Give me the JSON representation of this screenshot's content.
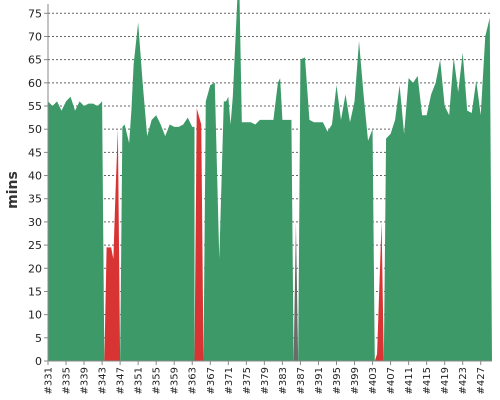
{
  "chart_data": {
    "type": "area",
    "title": "",
    "xlabel": "",
    "ylabel": "mins",
    "ylim": [
      0,
      77
    ],
    "yticks": [
      0,
      5,
      10,
      15,
      20,
      25,
      30,
      35,
      40,
      45,
      50,
      55,
      60,
      65,
      70,
      75
    ],
    "xtick_labels": [
      "#331",
      "#335",
      "#339",
      "#343",
      "#347",
      "#351",
      "#355",
      "#359",
      "#363",
      "#367",
      "#371",
      "#375",
      "#379",
      "#383",
      "#387",
      "#391",
      "#395",
      "#399",
      "#403",
      "#407",
      "#411",
      "#415",
      "#419",
      "#423",
      "#427"
    ],
    "xtick_values": [
      331,
      335,
      339,
      343,
      347,
      351,
      355,
      359,
      363,
      367,
      371,
      375,
      379,
      383,
      387,
      391,
      395,
      399,
      403,
      407,
      411,
      415,
      419,
      423,
      427
    ],
    "grid": "horizontal dashed",
    "colors": {
      "pass": "#3d9a68",
      "fail": "#d93434",
      "aborted": "#6b6b6b"
    },
    "series": [
      {
        "status": "pass",
        "x": [
          331,
          332,
          333,
          334,
          335,
          336,
          337,
          338,
          339,
          340,
          341,
          342,
          343,
          343.5
        ],
        "values": [
          56,
          55,
          56,
          54,
          56,
          57,
          54,
          56,
          55,
          55.5,
          55.5,
          55,
          56,
          0
        ]
      },
      {
        "status": "fail",
        "x": [
          343.5,
          344,
          345,
          345.5,
          346,
          346.5,
          347
        ],
        "values": [
          0,
          24.5,
          24.5,
          22,
          37,
          50,
          0
        ]
      },
      {
        "status": "pass",
        "x": [
          347,
          347.5,
          348,
          349,
          349.5,
          350,
          351,
          352,
          353,
          354,
          355,
          356,
          357,
          358,
          359,
          360,
          361,
          362,
          363,
          363.5
        ],
        "values": [
          0,
          50.5,
          51,
          47,
          54,
          64,
          73,
          60,
          48.5,
          52,
          53,
          51,
          48.5,
          51,
          50.5,
          50.5,
          51,
          52.5,
          50.5,
          50.5
        ]
      },
      {
        "status": "fail",
        "x": [
          363.5,
          364,
          365,
          365.5
        ],
        "values": [
          0,
          54.5,
          51,
          0
        ]
      },
      {
        "status": "pass",
        "x": [
          365.5,
          366,
          367,
          368,
          369,
          370,
          370.5,
          371,
          371.5,
          372,
          373,
          373.5,
          374,
          375,
          376,
          377,
          378,
          379,
          380,
          381,
          382,
          382.5,
          383,
          384,
          385,
          385.5
        ],
        "values": [
          0,
          56,
          59.5,
          60,
          22,
          56,
          56,
          57,
          51,
          57,
          78,
          78,
          51.5,
          51.5,
          51.5,
          51,
          52,
          52,
          52,
          52,
          60,
          61,
          52,
          52,
          52,
          0
        ]
      },
      {
        "status": "aborted",
        "x": [
          385.5,
          386,
          386.5
        ],
        "values": [
          0,
          30,
          0
        ]
      },
      {
        "status": "pass",
        "x": [
          386.5,
          387,
          388,
          389,
          390,
          391,
          392,
          393,
          394,
          395,
          396,
          397,
          398,
          399,
          400,
          401,
          402,
          403,
          403.5
        ],
        "values": [
          0,
          65,
          65.5,
          52,
          51.5,
          51.5,
          51.5,
          49.5,
          51,
          59.5,
          52,
          57.5,
          51.5,
          56,
          69,
          57.5,
          47.5,
          50,
          0
        ]
      },
      {
        "status": "fail",
        "x": [
          403.5,
          404,
          405,
          405.5
        ],
        "values": [
          0,
          1.5,
          30,
          0
        ]
      },
      {
        "status": "pass",
        "x": [
          405.5,
          406,
          407,
          408,
          409,
          410,
          411,
          412,
          413,
          414,
          415,
          416,
          417,
          418,
          419,
          420,
          421,
          422,
          423,
          424,
          425,
          426,
          427,
          428,
          429,
          429.5
        ],
        "values": [
          0,
          48,
          49,
          52,
          59.5,
          49,
          61,
          60,
          61.5,
          53,
          53,
          57.5,
          60,
          65,
          55,
          53,
          65.5,
          58,
          66.5,
          54,
          53.5,
          60.5,
          53,
          70,
          74,
          0
        ]
      }
    ]
  }
}
